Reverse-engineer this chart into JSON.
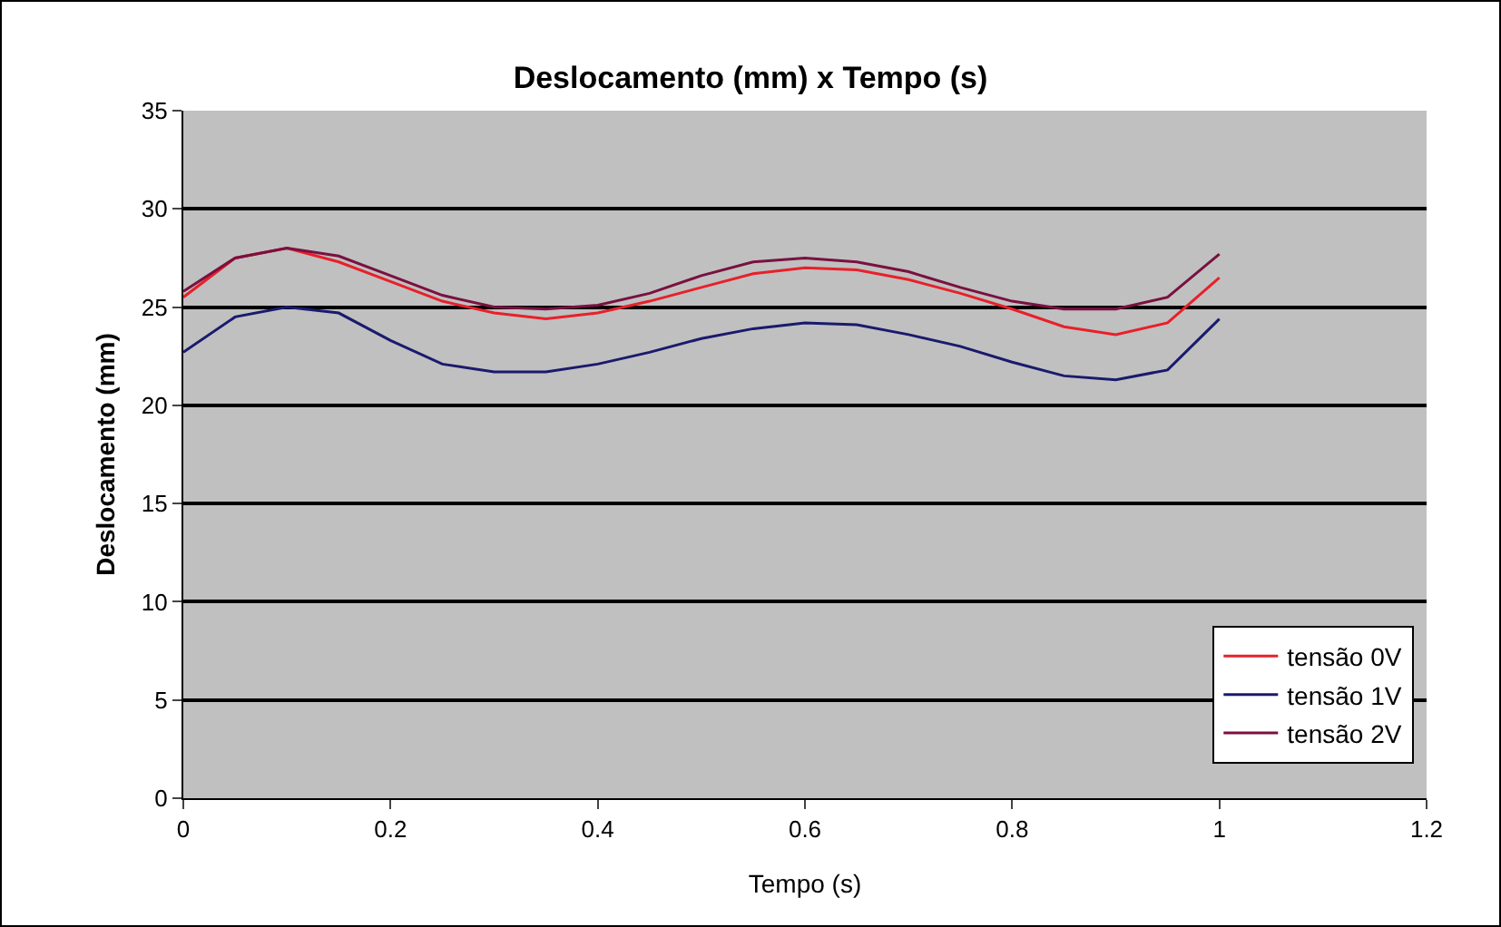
{
  "chart_data": {
    "type": "line",
    "title": "Deslocamento (mm) x Tempo (s)",
    "xlabel": "Tempo (s)",
    "ylabel": "Deslocamento (mm)",
    "x": [
      0,
      0.05,
      0.1,
      0.15,
      0.2,
      0.25,
      0.3,
      0.35,
      0.4,
      0.45,
      0.5,
      0.55,
      0.6,
      0.65,
      0.7,
      0.75,
      0.8,
      0.85,
      0.9,
      0.95,
      1
    ],
    "series": [
      {
        "name": "tensão 0V",
        "color": "#e8202a",
        "values": [
          25.5,
          27.5,
          28,
          27.3,
          26.3,
          25.3,
          24.7,
          24.4,
          24.7,
          25.3,
          26,
          26.7,
          27,
          26.9,
          26.4,
          25.7,
          24.9,
          24,
          23.6,
          24.2,
          26.5
        ]
      },
      {
        "name": "tensão 1V",
        "color": "#1a1a6e",
        "values": [
          22.7,
          24.5,
          25,
          24.7,
          23.3,
          22.1,
          21.7,
          21.7,
          22.1,
          22.7,
          23.4,
          23.9,
          24.2,
          24.1,
          23.6,
          23,
          22.2,
          21.5,
          21.3,
          21.8,
          24.4
        ]
      },
      {
        "name": "tensão 2V",
        "color": "#7a1040",
        "values": [
          25.8,
          27.5,
          28,
          27.6,
          26.6,
          25.6,
          25,
          24.9,
          25.1,
          25.7,
          26.6,
          27.3,
          27.5,
          27.3,
          26.8,
          26,
          25.3,
          24.9,
          24.9,
          25.5,
          27.7
        ]
      }
    ],
    "xlim": [
      0,
      1.2
    ],
    "xticks": [
      0,
      0.2,
      0.4,
      0.6,
      0.8,
      1,
      1.2
    ],
    "ylim": [
      0,
      35
    ],
    "yticks": [
      0,
      5,
      10,
      15,
      20,
      25,
      30,
      35
    ],
    "grid": "y",
    "legend": "right",
    "marker": "none",
    "line_style": "solid"
  }
}
